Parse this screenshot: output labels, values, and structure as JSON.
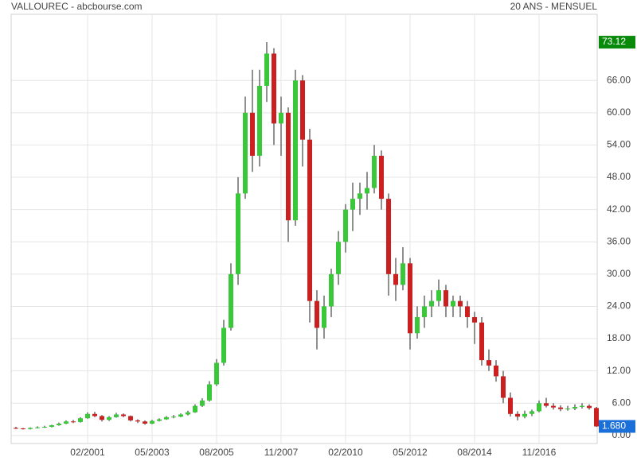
{
  "chart_data": {
    "type": "candlestick",
    "title": "VALLOUREC - abcbourse.com",
    "subtitle": "20 ANS - MENSUEL",
    "up_color": "#3ac83a",
    "down_color": "#cc2020",
    "wick_color": "#222222",
    "grid": true,
    "xlim": [
      "08/1998",
      "11/2018"
    ],
    "xticks": [
      "02/2001",
      "05/2003",
      "08/2005",
      "11/2007",
      "02/2010",
      "05/2012",
      "08/2014",
      "11/2016"
    ],
    "ylim": [
      -1.5,
      78.3
    ],
    "yticks": [
      {
        "value": 0,
        "label": "0.00"
      },
      {
        "value": 6,
        "label": "6.00"
      },
      {
        "value": 12,
        "label": "12.00"
      },
      {
        "value": 18,
        "label": "18.00"
      },
      {
        "value": 24,
        "label": "24.00"
      },
      {
        "value": 30,
        "label": "30.00"
      },
      {
        "value": 36,
        "label": "36.00"
      },
      {
        "value": 42,
        "label": "42.00"
      },
      {
        "value": 48,
        "label": "48.00"
      },
      {
        "value": 54,
        "label": "54.00"
      },
      {
        "value": 60,
        "label": "60.00"
      },
      {
        "value": 66,
        "label": "66.00"
      }
    ],
    "markers": [
      {
        "value": 73.12,
        "label": "73.12",
        "color": "#0a8a0a"
      },
      {
        "value": 1.68,
        "label": "1.680",
        "color": "#1b6fd8"
      }
    ],
    "x": [
      "08/1998",
      "11/1998",
      "02/1999",
      "05/1999",
      "08/1999",
      "11/1999",
      "02/2000",
      "05/2000",
      "08/2000",
      "11/2000",
      "02/2001",
      "05/2001",
      "08/2001",
      "11/2001",
      "02/2002",
      "05/2002",
      "08/2002",
      "11/2002",
      "02/2003",
      "05/2003",
      "08/2003",
      "11/2003",
      "02/2004",
      "05/2004",
      "08/2004",
      "11/2004",
      "02/2005",
      "05/2005",
      "08/2005",
      "11/2005",
      "02/2006",
      "05/2006",
      "08/2006",
      "11/2006",
      "02/2007",
      "05/2007",
      "08/2007",
      "11/2007",
      "02/2008",
      "05/2008",
      "08/2008",
      "11/2008",
      "02/2009",
      "05/2009",
      "08/2009",
      "11/2009",
      "02/2010",
      "05/2010",
      "08/2010",
      "11/2010",
      "02/2011",
      "05/2011",
      "08/2011",
      "11/2011",
      "02/2012",
      "05/2012",
      "08/2012",
      "11/2012",
      "02/2013",
      "05/2013",
      "08/2013",
      "11/2013",
      "02/2014",
      "05/2014",
      "08/2014",
      "11/2014",
      "02/2015",
      "05/2015",
      "08/2015",
      "11/2015",
      "02/2016",
      "05/2016",
      "08/2016",
      "11/2016",
      "02/2017",
      "05/2017",
      "08/2017",
      "11/2017",
      "02/2018",
      "05/2018",
      "08/2018",
      "11/2018"
    ],
    "ohlc": [
      [
        1.4,
        1.6,
        1.2,
        1.3
      ],
      [
        1.3,
        1.4,
        1.1,
        1.2
      ],
      [
        1.2,
        1.5,
        1.1,
        1.4
      ],
      [
        1.4,
        1.7,
        1.3,
        1.5
      ],
      [
        1.5,
        1.8,
        1.4,
        1.6
      ],
      [
        1.6,
        2.0,
        1.5,
        1.9
      ],
      [
        1.9,
        2.4,
        1.8,
        2.2
      ],
      [
        2.2,
        2.8,
        2.1,
        2.6
      ],
      [
        2.6,
        2.9,
        2.3,
        2.5
      ],
      [
        2.5,
        3.4,
        2.4,
        3.2
      ],
      [
        3.2,
        4.3,
        3.1,
        4.0
      ],
      [
        4.0,
        4.4,
        3.4,
        3.6
      ],
      [
        3.6,
        3.8,
        2.6,
        2.9
      ],
      [
        2.9,
        3.6,
        2.7,
        3.4
      ],
      [
        3.4,
        4.2,
        3.3,
        3.9
      ],
      [
        3.9,
        4.1,
        3.4,
        3.6
      ],
      [
        3.6,
        3.7,
        2.6,
        2.8
      ],
      [
        2.8,
        3.0,
        2.3,
        2.6
      ],
      [
        2.6,
        2.8,
        2.0,
        2.2
      ],
      [
        2.2,
        2.9,
        2.1,
        2.7
      ],
      [
        2.7,
        3.2,
        2.6,
        3.0
      ],
      [
        3.0,
        3.6,
        2.9,
        3.4
      ],
      [
        3.4,
        3.8,
        3.2,
        3.5
      ],
      [
        3.5,
        4.1,
        3.4,
        3.9
      ],
      [
        3.9,
        4.6,
        3.7,
        4.3
      ],
      [
        4.3,
        5.8,
        4.2,
        5.5
      ],
      [
        5.5,
        6.9,
        5.3,
        6.5
      ],
      [
        6.5,
        10.1,
        6.3,
        9.5
      ],
      [
        9.5,
        14.2,
        9.2,
        13.5
      ],
      [
        13.5,
        21.5,
        13.0,
        20
      ],
      [
        20,
        32,
        19.5,
        30
      ],
      [
        30,
        48,
        28,
        45
      ],
      [
        45,
        63,
        44,
        60
      ],
      [
        60,
        68,
        49,
        52
      ],
      [
        52,
        68,
        50,
        65
      ],
      [
        65,
        73.12,
        62,
        71
      ],
      [
        71,
        72,
        54,
        58
      ],
      [
        58,
        63,
        52,
        60
      ],
      [
        60,
        61,
        36,
        40
      ],
      [
        40,
        68,
        39,
        66
      ],
      [
        66,
        67,
        50,
        55
      ],
      [
        55,
        57,
        21,
        25
      ],
      [
        25,
        27,
        16,
        20
      ],
      [
        20,
        26,
        18,
        24
      ],
      [
        24,
        31,
        22,
        30
      ],
      [
        30,
        38,
        28,
        36
      ],
      [
        36,
        43,
        34,
        42
      ],
      [
        42,
        47,
        38,
        44
      ],
      [
        44,
        47,
        41,
        45
      ],
      [
        45,
        49,
        42,
        46
      ],
      [
        46,
        54,
        45,
        52
      ],
      [
        52,
        53,
        42,
        44
      ],
      [
        44,
        45,
        26,
        30
      ],
      [
        30,
        33,
        25,
        28
      ],
      [
        28,
        35,
        27,
        32
      ],
      [
        32,
        33,
        16,
        19
      ],
      [
        19,
        24,
        18,
        22
      ],
      [
        22,
        26,
        20,
        24
      ],
      [
        24,
        27,
        22,
        25
      ],
      [
        25,
        29,
        24,
        27
      ],
      [
        27,
        28,
        22,
        24
      ],
      [
        24,
        26,
        22,
        25
      ],
      [
        25,
        26,
        22,
        24
      ],
      [
        24,
        25,
        20,
        22
      ],
      [
        22,
        23,
        17,
        21
      ],
      [
        21,
        22,
        13,
        14
      ],
      [
        14,
        16,
        12,
        13
      ],
      [
        13,
        14,
        10,
        11
      ],
      [
        11,
        12,
        6,
        7
      ],
      [
        7,
        8,
        3.5,
        4
      ],
      [
        4,
        4.5,
        2.8,
        3.5
      ],
      [
        3.5,
        4.6,
        3.2,
        4.0
      ],
      [
        4.0,
        4.8,
        3.6,
        4.5
      ],
      [
        4.5,
        6.5,
        4.3,
        6.0
      ],
      [
        6.0,
        7.0,
        5.2,
        5.5
      ],
      [
        5.5,
        6.0,
        4.8,
        5.2
      ],
      [
        5.2,
        5.6,
        4.5,
        4.9
      ],
      [
        4.9,
        5.5,
        4.6,
        5.0
      ],
      [
        5.0,
        5.8,
        4.7,
        5.3
      ],
      [
        5.3,
        6.0,
        5.0,
        5.5
      ],
      [
        5.5,
        5.8,
        4.8,
        5.1
      ],
      [
        5.1,
        5.3,
        1.6,
        1.68
      ]
    ]
  }
}
